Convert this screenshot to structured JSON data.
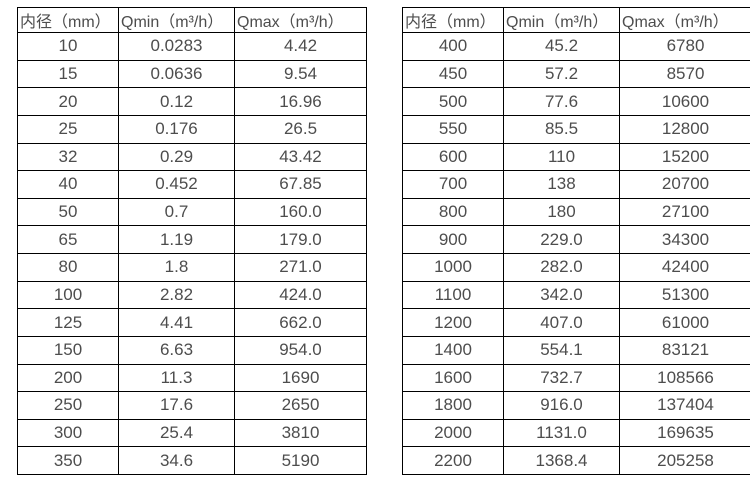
{
  "text_color": "#4d4d4d",
  "border_color": "#000000",
  "background_color": "#ffffff",
  "tables": [
    {
      "name": "small-diameters",
      "headers": [
        "内径（mm）",
        "Qmin（m³/h）",
        "Qmax（m³/h）"
      ],
      "rows": [
        [
          "10",
          "0.0283",
          "4.42"
        ],
        [
          "15",
          "0.0636",
          "9.54"
        ],
        [
          "20",
          "0.12",
          "16.96"
        ],
        [
          "25",
          "0.176",
          "26.5"
        ],
        [
          "32",
          "0.29",
          "43.42"
        ],
        [
          "40",
          "0.452",
          "67.85"
        ],
        [
          "50",
          "0.7",
          "160.0"
        ],
        [
          "65",
          "1.19",
          "179.0"
        ],
        [
          "80",
          "1.8",
          "271.0"
        ],
        [
          "100",
          "2.82",
          "424.0"
        ],
        [
          "125",
          "4.41",
          "662.0"
        ],
        [
          "150",
          "6.63",
          "954.0"
        ],
        [
          "200",
          "11.3",
          "1690"
        ],
        [
          "250",
          "17.6",
          "2650"
        ],
        [
          "300",
          "25.4",
          "3810"
        ],
        [
          "350",
          "34.6",
          "5190"
        ]
      ]
    },
    {
      "name": "large-diameters",
      "headers": [
        "内径（mm）",
        "Qmin（m³/h）",
        "Qmax（m³/h）"
      ],
      "rows": [
        [
          "400",
          "45.2",
          "6780"
        ],
        [
          "450",
          "57.2",
          "8570"
        ],
        [
          "500",
          "77.6",
          "10600"
        ],
        [
          "550",
          "85.5",
          "12800"
        ],
        [
          "600",
          "110",
          "15200"
        ],
        [
          "700",
          "138",
          "20700"
        ],
        [
          "800",
          "180",
          "27100"
        ],
        [
          "900",
          "229.0",
          "34300"
        ],
        [
          "1000",
          "282.0",
          "42400"
        ],
        [
          "1100",
          "342.0",
          "51300"
        ],
        [
          "1200",
          "407.0",
          "61000"
        ],
        [
          "1400",
          "554.1",
          "83121"
        ],
        [
          "1600",
          "732.7",
          "108566"
        ],
        [
          "1800",
          "916.0",
          "137404"
        ],
        [
          "2000",
          "1131.0",
          "169635"
        ],
        [
          "2200",
          "1368.4",
          "205258"
        ]
      ]
    }
  ]
}
